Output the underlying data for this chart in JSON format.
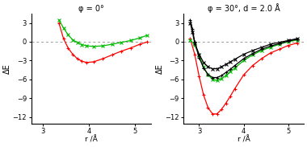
{
  "title_left": "φ = 0°",
  "title_right": "φ = 30°, d = 2.0 Å",
  "xlabel": "r /Å",
  "ylabel": "ΔE",
  "xlim_left": [
    2.75,
    5.35
  ],
  "xlim_right": [
    2.65,
    5.35
  ],
  "ylim": [
    -13,
    4.5
  ],
  "yticks": [
    3,
    0,
    -3,
    -6,
    -9,
    -12
  ],
  "xticks": [
    3.0,
    4.0,
    5.0
  ],
  "left_red_x": [
    3.35,
    3.45,
    3.55,
    3.65,
    3.75,
    3.85,
    3.95,
    4.1,
    4.3,
    4.5,
    4.7,
    4.9,
    5.1,
    5.25
  ],
  "left_red_y": [
    3.0,
    0.5,
    -1.0,
    -2.0,
    -2.7,
    -3.1,
    -3.3,
    -3.2,
    -2.7,
    -2.1,
    -1.5,
    -1.0,
    -0.4,
    -0.05
  ],
  "left_green_x": [
    3.35,
    3.45,
    3.55,
    3.65,
    3.75,
    3.85,
    3.95,
    4.1,
    4.3,
    4.5,
    4.7,
    4.9,
    5.1,
    5.25
  ],
  "left_green_y": [
    3.5,
    2.2,
    1.1,
    0.3,
    -0.1,
    -0.45,
    -0.65,
    -0.75,
    -0.65,
    -0.4,
    -0.1,
    0.2,
    0.6,
    1.0
  ],
  "right_red_x": [
    2.8,
    2.9,
    3.0,
    3.1,
    3.2,
    3.3,
    3.4,
    3.5,
    3.6,
    3.7,
    3.8,
    4.0,
    4.2,
    4.4,
    4.6,
    4.8,
    5.0,
    5.2
  ],
  "right_red_y": [
    0.5,
    -2.0,
    -5.5,
    -8.5,
    -10.5,
    -11.5,
    -11.5,
    -10.8,
    -9.8,
    -8.7,
    -7.5,
    -5.3,
    -3.8,
    -2.7,
    -1.8,
    -1.2,
    -0.6,
    -0.2
  ],
  "right_green_x": [
    2.8,
    2.9,
    3.0,
    3.1,
    3.2,
    3.3,
    3.4,
    3.5,
    3.6,
    3.7,
    3.8,
    4.0,
    4.2,
    4.4,
    4.6,
    4.8,
    5.0,
    5.2
  ],
  "right_green_y": [
    0.3,
    -0.5,
    -2.2,
    -4.0,
    -5.3,
    -6.0,
    -6.2,
    -5.9,
    -5.4,
    -4.8,
    -4.2,
    -3.0,
    -2.1,
    -1.4,
    -0.9,
    -0.4,
    0.0,
    0.3
  ],
  "right_black_plus_x": [
    2.8,
    2.85,
    2.9,
    3.0,
    3.1,
    3.2,
    3.3,
    3.4,
    3.5,
    3.6,
    3.7,
    3.8,
    4.0,
    4.2,
    4.4,
    4.6,
    4.8,
    5.0,
    5.2
  ],
  "right_black_plus_y": [
    3.5,
    2.0,
    0.0,
    -2.5,
    -4.2,
    -5.2,
    -5.7,
    -5.7,
    -5.4,
    -4.9,
    -4.4,
    -3.8,
    -2.7,
    -1.9,
    -1.2,
    -0.7,
    -0.3,
    0.1,
    0.4
  ],
  "right_black_cross_x": [
    2.8,
    2.85,
    2.9,
    3.0,
    3.1,
    3.2,
    3.3,
    3.4,
    3.5,
    3.6,
    3.7,
    3.8,
    4.0,
    4.2,
    4.4,
    4.6,
    4.8,
    5.0,
    5.2
  ],
  "right_black_cross_y": [
    3.0,
    1.5,
    -0.2,
    -2.0,
    -3.3,
    -4.0,
    -4.3,
    -4.3,
    -4.0,
    -3.6,
    -3.2,
    -2.8,
    -2.0,
    -1.4,
    -0.9,
    -0.4,
    -0.1,
    0.2,
    0.5
  ],
  "color_red": "#ff0000",
  "color_green": "#00bb00",
  "color_black": "#000000",
  "bg_color": "#ffffff",
  "dotted_color": "#999999"
}
